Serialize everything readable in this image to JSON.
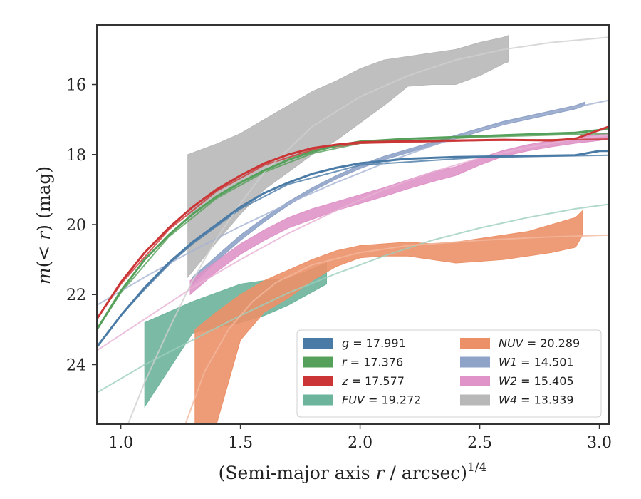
{
  "chart_data": {
    "type": "area",
    "xlabel": "(Semi-major axis r / arcsec)^{1/4}",
    "xlabel_main": "(Semi-major axis ",
    "xlabel_var": "r",
    "xlabel_tail": " / arcsec)",
    "xlabel_exp": "1/4",
    "ylabel": "m(< r) (mag)",
    "ylabel_m": "m",
    "ylabel_mid": "(< ",
    "ylabel_r": "r",
    "ylabel_unit": ") (mag)",
    "xlim": [
      0.9,
      3.04
    ],
    "ylim": [
      25.7,
      14.3
    ],
    "y_inverted": true,
    "x_ticks": [
      1.0,
      1.5,
      2.0,
      2.5,
      3.0
    ],
    "x_tick_labels": [
      "1.0",
      "1.5",
      "2.0",
      "2.5",
      "3.0"
    ],
    "y_ticks": [
      16,
      18,
      20,
      22,
      24
    ],
    "y_tick_labels": [
      "16",
      "18",
      "20",
      "22",
      "24"
    ],
    "grid": false,
    "legend_position": "lower-right",
    "series": [
      {
        "name": "g = 17.991",
        "label_var": "g",
        "label_val": "= 17.991",
        "color": "#4a7ba6",
        "style": "line",
        "x": [
          0.9,
          1.0,
          1.1,
          1.2,
          1.3,
          1.4,
          1.5,
          1.6,
          1.7,
          1.8,
          1.9,
          2.0,
          2.2,
          2.4,
          2.6,
          2.8,
          2.9,
          3.0,
          3.04
        ],
        "y": [
          23.5,
          22.6,
          21.8,
          21.1,
          20.5,
          20.0,
          19.5,
          19.1,
          18.8,
          18.55,
          18.38,
          18.25,
          18.12,
          18.07,
          18.05,
          18.03,
          18.02,
          17.9,
          17.9
        ]
      },
      {
        "name": "r = 17.376",
        "label_var": "r",
        "label_val": "= 17.376",
        "color": "#55a05a",
        "style": "line",
        "x": [
          0.9,
          1.0,
          1.1,
          1.2,
          1.3,
          1.4,
          1.5,
          1.6,
          1.7,
          1.8,
          1.9,
          2.0,
          2.2,
          2.4,
          2.6,
          2.8,
          2.9,
          3.0,
          3.04
        ],
        "y": [
          23.0,
          21.9,
          21.0,
          20.3,
          19.7,
          19.2,
          18.8,
          18.45,
          18.15,
          17.92,
          17.75,
          17.63,
          17.55,
          17.5,
          17.45,
          17.4,
          17.38,
          17.3,
          17.25
        ]
      },
      {
        "name": "z = 17.577",
        "label_var": "z",
        "label_val": "= 17.577",
        "color": "#cc3535",
        "style": "line",
        "x": [
          0.9,
          1.0,
          1.1,
          1.2,
          1.3,
          1.4,
          1.5,
          1.6,
          1.7,
          1.8,
          1.9,
          2.0,
          2.2,
          2.4,
          2.6,
          2.8,
          2.9,
          3.0,
          3.04
        ],
        "y": [
          22.7,
          21.65,
          20.8,
          20.1,
          19.5,
          19.0,
          18.6,
          18.25,
          18.0,
          17.82,
          17.72,
          17.65,
          17.62,
          17.6,
          17.58,
          17.6,
          17.55,
          17.3,
          17.2
        ]
      },
      {
        "name": "FUV = 19.272",
        "label_var": "FUV",
        "label_val": "= 19.272",
        "color": "#6db49c",
        "style": "band",
        "x": [
          1.1,
          1.3,
          1.5,
          1.6,
          1.7,
          1.86
        ],
        "y_low": [
          22.8,
          22.2,
          21.7,
          21.6,
          21.55,
          21.1
        ],
        "y_high": [
          25.2,
          23.1,
          22.8,
          22.6,
          22.3,
          21.7
        ]
      },
      {
        "name": "NUV = 20.289",
        "label_var": "NUV",
        "label_val": "= 20.289",
        "color": "#ec9068",
        "style": "band",
        "x": [
          1.31,
          1.4,
          1.5,
          1.6,
          1.7,
          1.8,
          1.9,
          2.0,
          2.1,
          2.2,
          2.3,
          2.4,
          2.5,
          2.6,
          2.7,
          2.8,
          2.9,
          2.93
        ],
        "y_low": [
          23.0,
          22.5,
          22.0,
          21.6,
          21.3,
          21.0,
          20.75,
          20.6,
          20.55,
          20.5,
          20.55,
          20.5,
          20.4,
          20.3,
          20.2,
          20.0,
          19.8,
          19.6
        ],
        "y_high": [
          25.7,
          25.7,
          23.3,
          22.5,
          22.1,
          21.6,
          21.2,
          20.95,
          20.9,
          20.9,
          21.0,
          21.1,
          21.05,
          21.0,
          20.9,
          20.8,
          20.65,
          20.3
        ]
      },
      {
        "name": "W1 = 14.501",
        "label_var": "W1",
        "label_val": "= 14.501",
        "color": "#8fa3c8",
        "style": "band",
        "x": [
          1.3,
          1.4,
          1.5,
          1.6,
          1.7,
          1.8,
          1.9,
          2.0,
          2.1,
          2.2,
          2.3,
          2.4,
          2.5,
          2.6,
          2.7,
          2.8,
          2.9,
          2.94
        ],
        "y_low": [
          21.5,
          20.9,
          20.3,
          19.8,
          19.35,
          18.95,
          18.6,
          18.3,
          18.05,
          17.85,
          17.65,
          17.45,
          17.25,
          17.05,
          16.9,
          16.75,
          16.6,
          16.5
        ],
        "y_high": [
          21.7,
          21.05,
          20.45,
          19.92,
          19.45,
          19.05,
          18.7,
          18.4,
          18.15,
          17.95,
          17.75,
          17.55,
          17.35,
          17.15,
          17.0,
          16.85,
          16.7,
          16.6
        ]
      },
      {
        "name": "W2 = 15.405",
        "label_var": "W2",
        "label_val": "= 15.405",
        "color": "#df93c8",
        "style": "band",
        "x": [
          1.29,
          1.4,
          1.5,
          1.6,
          1.7,
          1.8,
          1.9,
          2.0,
          2.1,
          2.2,
          2.3,
          2.4,
          2.5,
          2.6,
          2.7,
          2.8,
          2.9,
          3.0,
          3.04
        ],
        "y_low": [
          21.6,
          21.05,
          20.55,
          20.15,
          19.8,
          19.55,
          19.35,
          19.15,
          18.95,
          18.72,
          18.5,
          18.35,
          18.1,
          17.88,
          17.72,
          17.6,
          17.52,
          17.42,
          17.38
        ],
        "y_high": [
          22.0,
          21.35,
          20.85,
          20.45,
          20.1,
          19.85,
          19.6,
          19.4,
          19.2,
          18.98,
          18.78,
          18.6,
          18.3,
          18.05,
          17.9,
          17.78,
          17.68,
          17.6,
          17.55
        ]
      },
      {
        "name": "W4 = 13.939",
        "label_var": "W4",
        "label_val": "= 13.939",
        "color": "#b8b8b8",
        "style": "band",
        "x": [
          1.28,
          1.4,
          1.5,
          1.6,
          1.7,
          1.8,
          1.9,
          2.0,
          2.1,
          2.2,
          2.3,
          2.4,
          2.5,
          2.6,
          2.62
        ],
        "y_low": [
          18.0,
          17.7,
          17.4,
          17.0,
          16.6,
          16.2,
          15.9,
          15.55,
          15.3,
          15.2,
          15.1,
          15.0,
          14.8,
          14.65,
          14.6
        ],
        "y_high": [
          21.5,
          20.5,
          19.7,
          19.0,
          18.5,
          18.0,
          17.6,
          17.1,
          16.6,
          16.05,
          16.0,
          16.0,
          15.75,
          15.4,
          15.35
        ]
      }
    ],
    "models": [
      {
        "of": "g",
        "color": "#4a7ba6",
        "x": [
          0.9,
          1.0,
          1.1,
          1.2,
          1.3,
          1.4,
          1.5,
          1.7,
          2.0,
          2.5,
          3.04
        ],
        "y": [
          23.5,
          22.6,
          21.85,
          21.15,
          20.55,
          20.05,
          19.55,
          18.85,
          18.3,
          18.08,
          18.02
        ]
      },
      {
        "of": "r",
        "color": "#55a05a",
        "x": [
          0.9,
          1.0,
          1.2,
          1.4,
          1.6,
          1.8,
          2.0,
          2.5,
          3.04
        ],
        "y": [
          23.0,
          21.95,
          20.35,
          19.25,
          18.5,
          17.97,
          17.68,
          17.5,
          17.4
        ]
      },
      {
        "of": "z",
        "color": "#cc3535",
        "x": [
          0.9,
          1.0,
          1.2,
          1.4,
          1.6,
          1.8,
          2.0,
          2.5,
          3.04
        ],
        "y": [
          22.7,
          21.7,
          20.15,
          19.05,
          18.3,
          17.87,
          17.68,
          17.6,
          17.56
        ]
      },
      {
        "of": "FUV",
        "color": "#9ccfbd",
        "x": [
          0.9,
          1.1,
          1.3,
          1.5,
          1.7,
          1.9,
          2.1,
          2.3,
          2.5,
          2.7,
          2.9,
          3.04
        ],
        "y": [
          24.8,
          24.0,
          23.3,
          22.6,
          21.95,
          21.4,
          20.9,
          20.45,
          20.1,
          19.8,
          19.55,
          19.42
        ]
      },
      {
        "of": "NUV",
        "color": "#f3b89c",
        "x": [
          1.27,
          1.35,
          1.45,
          1.55,
          1.65,
          1.8,
          2.0,
          2.2,
          2.5,
          2.8,
          3.04
        ],
        "y": [
          25.7,
          24.2,
          23.0,
          22.2,
          21.65,
          21.15,
          20.8,
          20.6,
          20.45,
          20.35,
          20.3
        ]
      },
      {
        "of": "W1",
        "color": "#a5b3d3",
        "x": [
          0.9,
          1.1,
          1.3,
          1.5,
          1.7,
          1.9,
          2.1,
          2.3,
          2.5,
          2.7,
          2.9,
          3.04
        ],
        "y": [
          22.3,
          21.5,
          20.75,
          20.05,
          19.4,
          18.8,
          18.25,
          17.75,
          17.3,
          16.95,
          16.65,
          16.45
        ]
      },
      {
        "of": "W2",
        "color": "#e8b1d6",
        "x": [
          0.9,
          1.1,
          1.3,
          1.5,
          1.7,
          1.9,
          2.1,
          2.3,
          2.5,
          2.7,
          2.9,
          3.04
        ],
        "y": [
          23.6,
          22.7,
          21.8,
          21.0,
          20.25,
          19.6,
          19.0,
          18.5,
          18.1,
          17.8,
          17.55,
          17.45
        ]
      },
      {
        "of": "W4",
        "color": "#cfcfcf",
        "x": [
          1.03,
          1.1,
          1.2,
          1.3,
          1.4,
          1.5,
          1.6,
          1.8,
          2.0,
          2.2,
          2.4,
          2.6,
          2.8,
          3.04
        ],
        "y": [
          25.7,
          24.5,
          23.0,
          21.6,
          20.4,
          19.4,
          18.5,
          17.2,
          16.35,
          15.75,
          15.3,
          15.0,
          14.8,
          14.65
        ]
      }
    ]
  }
}
